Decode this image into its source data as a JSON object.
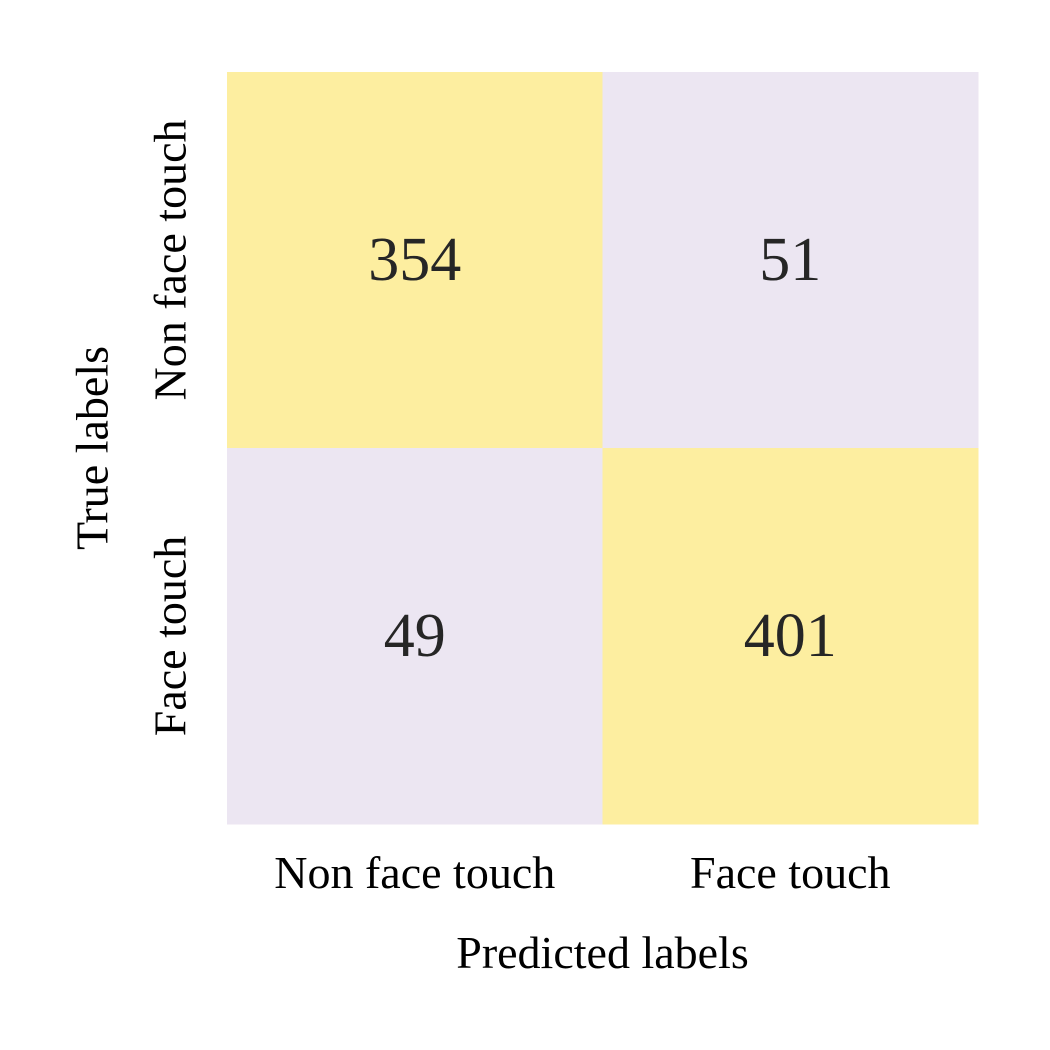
{
  "chart_data": {
    "type": "heatmap",
    "subtype": "confusion-matrix",
    "x_categories": [
      "Non face touch",
      "Face touch"
    ],
    "y_categories": [
      "Non face touch",
      "Face touch"
    ],
    "values": [
      [
        354,
        51
      ],
      [
        49,
        401
      ]
    ],
    "xlabel": "Predicted labels",
    "ylabel": "True labels",
    "colorbar": false,
    "grid": false,
    "colors": {
      "high": "#fdeea0",
      "low": "#ece6f2",
      "text": "#262626"
    }
  }
}
